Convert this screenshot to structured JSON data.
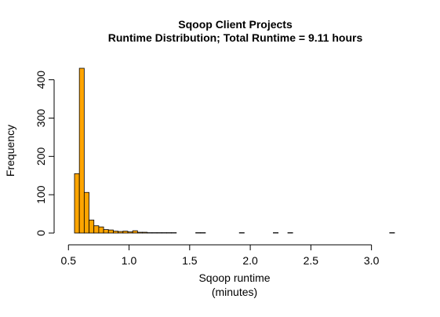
{
  "colors": {
    "bar_fill": "#FFA500",
    "bar_stroke": "#000000",
    "background": "#FFFFFF"
  },
  "chart_data": {
    "type": "bar",
    "title": "Sqoop Client Projects",
    "subtitle": "Runtime Distribution; Total Runtime = 9.11 hours",
    "xlabel_line1": "Sqoop runtime",
    "xlabel_line2": "(minutes)",
    "ylabel": "Frequency",
    "bin_width": 0.04,
    "bins": [
      {
        "start": 0.55,
        "end": 0.59,
        "count": 155
      },
      {
        "start": 0.59,
        "end": 0.63,
        "count": 430
      },
      {
        "start": 0.63,
        "end": 0.67,
        "count": 106
      },
      {
        "start": 0.67,
        "end": 0.71,
        "count": 34
      },
      {
        "start": 0.71,
        "end": 0.75,
        "count": 19
      },
      {
        "start": 0.75,
        "end": 0.79,
        "count": 16
      },
      {
        "start": 0.79,
        "end": 0.83,
        "count": 9
      },
      {
        "start": 0.83,
        "end": 0.87,
        "count": 8
      },
      {
        "start": 0.87,
        "end": 0.91,
        "count": 5
      },
      {
        "start": 0.91,
        "end": 0.95,
        "count": 4
      },
      {
        "start": 0.95,
        "end": 0.99,
        "count": 5
      },
      {
        "start": 0.99,
        "end": 1.03,
        "count": 3
      },
      {
        "start": 1.03,
        "end": 1.07,
        "count": 6
      },
      {
        "start": 1.07,
        "end": 1.11,
        "count": 2
      },
      {
        "start": 1.11,
        "end": 1.15,
        "count": 2
      },
      {
        "start": 1.15,
        "end": 1.19,
        "count": 1
      },
      {
        "start": 1.19,
        "end": 1.23,
        "count": 1
      },
      {
        "start": 1.23,
        "end": 1.27,
        "count": 1
      },
      {
        "start": 1.27,
        "end": 1.31,
        "count": 1
      },
      {
        "start": 1.31,
        "end": 1.35,
        "count": 1
      },
      {
        "start": 1.35,
        "end": 1.39,
        "count": 1
      },
      {
        "start": 1.55,
        "end": 1.59,
        "count": 1
      },
      {
        "start": 1.59,
        "end": 1.63,
        "count": 1
      },
      {
        "start": 1.91,
        "end": 1.95,
        "count": 1
      },
      {
        "start": 2.19,
        "end": 2.23,
        "count": 1
      },
      {
        "start": 2.31,
        "end": 2.35,
        "count": 1
      },
      {
        "start": 3.15,
        "end": 3.19,
        "count": 1
      }
    ],
    "xlim": [
      0.55,
      3.19
    ],
    "ylim": [
      0,
      430
    ],
    "x_ticks": [
      0.5,
      1.0,
      1.5,
      2.0,
      2.5,
      3.0
    ],
    "x_tick_labels": [
      "0.5",
      "1.0",
      "1.5",
      "2.0",
      "2.5",
      "3.0"
    ],
    "y_ticks": [
      0,
      100,
      200,
      300,
      400
    ],
    "y_tick_labels": [
      "0",
      "100",
      "200",
      "300",
      "400"
    ],
    "grid": false,
    "legend": "none"
  }
}
